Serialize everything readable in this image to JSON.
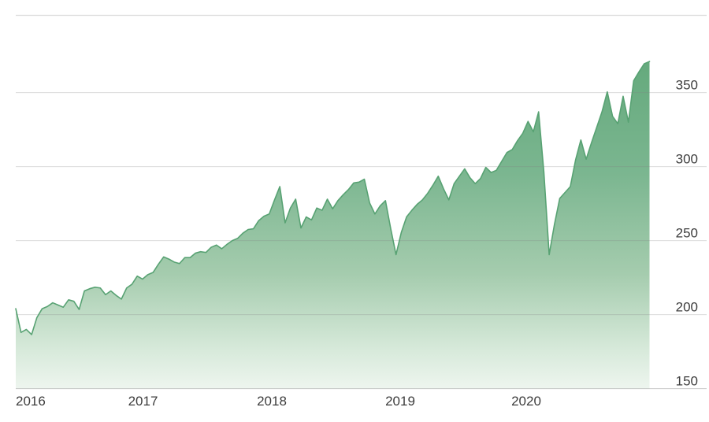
{
  "chart_data": {
    "type": "area",
    "title": "",
    "x_axis": {
      "tick_labels": [
        "2016",
        "2017",
        "2018",
        "2019",
        "2020"
      ],
      "range_years_start": 2016,
      "range_years_end": 2021
    },
    "y_axis": {
      "side": "right",
      "tick_labels": [
        "350",
        "300",
        "250",
        "200",
        "150"
      ],
      "tick_values": [
        350,
        300,
        250,
        200,
        150
      ],
      "range": [
        150,
        402
      ]
    },
    "grid": "horizontal-on",
    "legend": "none",
    "series": [
      {
        "sampling": "semi-monthly",
        "points_per_year": 24,
        "start_year": 2016,
        "end_label": "mid-Dec 2020",
        "values": [
          204,
          188,
          190,
          186.5,
          198,
          204,
          205.5,
          208,
          206.5,
          205,
          210,
          209,
          203.5,
          216,
          217.5,
          218.5,
          218,
          213.5,
          216,
          213,
          210.5,
          218,
          220.5,
          226,
          224,
          227,
          228.5,
          234,
          239,
          237.5,
          235.5,
          234.5,
          238.5,
          238.5,
          241.5,
          242.5,
          242,
          245.5,
          247,
          244.5,
          247.5,
          250,
          251.5,
          255,
          257.5,
          258,
          263.5,
          266.5,
          268,
          277.5,
          286.5,
          262,
          272,
          278,
          258.5,
          266,
          264,
          272,
          270.5,
          278,
          271.5,
          277,
          281,
          284.5,
          289,
          289.5,
          291.5,
          275.5,
          268,
          273.5,
          277,
          258,
          240.5,
          255.5,
          266,
          270.5,
          274.5,
          277.5,
          282,
          287.5,
          293.5,
          285,
          277.5,
          288.5,
          293.5,
          298.5,
          292.5,
          288.5,
          292,
          299.5,
          296,
          297.5,
          303.5,
          309.5,
          311.5,
          317.5,
          322.5,
          330.5,
          323.5,
          337,
          296,
          240.5,
          261,
          278.5,
          282.5,
          286.5,
          304.5,
          318,
          305,
          316,
          326.5,
          337,
          350.5,
          334,
          329,
          347.5,
          330,
          358,
          364,
          369.5,
          371
        ]
      }
    ],
    "colors": {
      "background": "#ffffff",
      "line_stroke": "#58a273",
      "gridline": "#808080",
      "gridline_opacity": 0.28,
      "baseline_opacity": 0.42,
      "top_border": "#dcdcdc",
      "label_text": "#3d3d3d",
      "gradient_stops": [
        {
          "offset": 0,
          "color": "#64a97c"
        },
        {
          "offset": 0.35,
          "color": "#7bb690"
        },
        {
          "offset": 0.65,
          "color": "#a5ccae"
        },
        {
          "offset": 0.88,
          "color": "#d8eadb"
        },
        {
          "offset": 1,
          "color": "#eff6f0"
        }
      ]
    }
  }
}
